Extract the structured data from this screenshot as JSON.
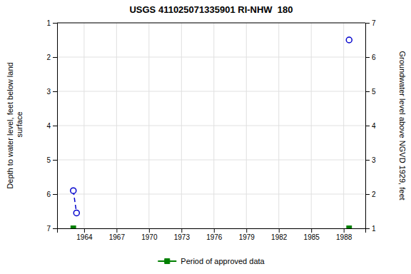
{
  "chart_data": {
    "type": "scatter",
    "title": "USGS 411025071335901 RI-NHW  180",
    "y_label": "Depth to water level, feet below land\n surface",
    "y2_label": "Groundwater level above NGVD 1929, feet",
    "xlim": [
      1961.5,
      1990.0
    ],
    "xticks": [
      1964,
      1967,
      1970,
      1973,
      1976,
      1979,
      1982,
      1985,
      1988
    ],
    "ylim": [
      7.0,
      1.0
    ],
    "yticks": [
      1.0,
      2.0,
      3.0,
      4.0,
      5.0,
      6.0,
      7.0
    ],
    "y2lim": [
      1.0,
      7.0
    ],
    "y2ticks": [
      1.0,
      2.0,
      3.0,
      4.0,
      5.0,
      6.0,
      7.0
    ],
    "grid": true,
    "legend": "bottom",
    "series": [
      {
        "type": "line",
        "line_style": "dashed",
        "color": "#0000cc",
        "x": [
          1963.0,
          1963.3
        ],
        "values": [
          5.9,
          6.55
        ]
      },
      {
        "type": "scatter",
        "marker": "circle",
        "color": "#0000cc",
        "x": [
          1963.0,
          1963.3,
          1988.5
        ],
        "values": [
          5.9,
          6.55,
          1.5
        ]
      },
      {
        "type": "scatter",
        "marker": "square",
        "color": "#008000",
        "name": "Period of approved data",
        "x": [
          1963.0,
          1988.5
        ],
        "values": [
          7.0,
          7.0
        ]
      }
    ]
  }
}
